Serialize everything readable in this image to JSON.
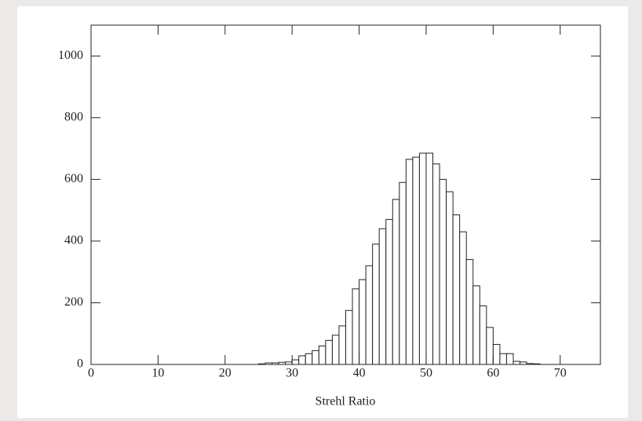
{
  "chart_data": {
    "type": "histogram",
    "x_label": "Strehl Ratio",
    "bins": [
      25,
      26,
      27,
      28,
      29,
      30,
      31,
      32,
      33,
      34,
      35,
      36,
      37,
      38,
      39,
      40,
      41,
      42,
      43,
      44,
      45,
      46,
      47,
      48,
      49,
      50,
      51,
      52,
      53,
      54,
      55,
      56,
      57,
      58,
      59,
      60,
      61,
      62,
      63,
      64,
      65,
      66,
      67
    ],
    "values": [
      2,
      5,
      5,
      7,
      8,
      15,
      28,
      35,
      45,
      60,
      78,
      95,
      125,
      175,
      245,
      275,
      320,
      390,
      440,
      470,
      535,
      590,
      665,
      672,
      685,
      685,
      650,
      600,
      560,
      485,
      430,
      340,
      255,
      190,
      120,
      65,
      35,
      35,
      10,
      8,
      3,
      2
    ],
    "color": "#ffffff",
    "edge_color": "#222222",
    "xlim": [
      0,
      76
    ],
    "xticks": [
      0,
      10,
      20,
      30,
      40,
      50,
      60,
      70
    ],
    "ylim": [
      0,
      1100
    ],
    "yticks": [
      0,
      200,
      400,
      600,
      800,
      1000
    ]
  }
}
